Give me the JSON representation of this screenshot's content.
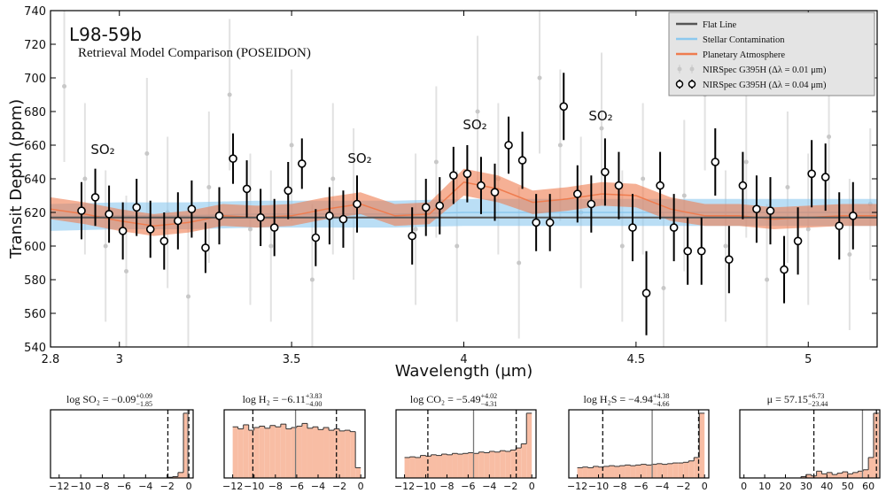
{
  "chart_data": [
    {
      "type": "line",
      "title": "L98-59b",
      "subtitle": "Retrieval Model Comparison (POSEIDON)",
      "x_label": "Wavelength (μm)",
      "y_label": "Transit Depth (ppm)",
      "xlim": [
        2.8,
        5.2
      ],
      "ylim": [
        540,
        740
      ],
      "xticks": [
        2.8,
        3,
        3.5,
        4,
        4.5,
        5
      ],
      "yticks": [
        540,
        560,
        580,
        600,
        620,
        640,
        660,
        680,
        700,
        720,
        740
      ],
      "legend": "upper right",
      "annotations": [
        "SO₂",
        "SO₂",
        "SO₂",
        "SO₂"
      ],
      "series": [
        {
          "name": "Flat Line",
          "color": "#555555",
          "x": [
            2.8,
            5.2
          ],
          "values": [
            617,
            617
          ]
        },
        {
          "name": "Stellar Contamination",
          "color": "#8cc8ee",
          "x": [
            2.8,
            3.0,
            3.2,
            3.4,
            3.6,
            3.8,
            4.0,
            4.2,
            4.4,
            4.6,
            4.8,
            5.0,
            5.2
          ],
          "values": [
            617,
            618,
            618,
            619,
            619,
            619,
            620,
            620,
            620,
            620,
            620,
            620,
            620
          ],
          "lower": [
            609,
            610,
            610,
            611,
            611,
            611,
            612,
            612,
            612,
            612,
            612,
            612,
            612
          ],
          "upper": [
            625,
            626,
            626,
            627,
            627,
            627,
            628,
            628,
            628,
            628,
            628,
            628,
            628
          ]
        },
        {
          "name": "Planetary Atmosphere",
          "color": "#ef7c4f",
          "x": [
            2.8,
            2.9,
            3.0,
            3.1,
            3.2,
            3.3,
            3.4,
            3.5,
            3.6,
            3.7,
            3.8,
            3.9,
            4.0,
            4.1,
            4.2,
            4.3,
            4.4,
            4.5,
            4.6,
            4.7,
            4.8,
            4.9,
            5.0,
            5.1,
            5.2
          ],
          "values": [
            622,
            619,
            615,
            612,
            614,
            618,
            617,
            618,
            622,
            625,
            618,
            619,
            638,
            634,
            626,
            628,
            631,
            630,
            622,
            618,
            618,
            616,
            617,
            618,
            618
          ],
          "lower": [
            616,
            613,
            609,
            606,
            608,
            612,
            611,
            612,
            616,
            619,
            612,
            613,
            630,
            626,
            619,
            621,
            624,
            623,
            615,
            612,
            612,
            610,
            611,
            612,
            612
          ],
          "upper": [
            629,
            626,
            622,
            619,
            621,
            625,
            624,
            625,
            629,
            632,
            625,
            626,
            646,
            642,
            633,
            635,
            638,
            637,
            629,
            625,
            625,
            623,
            624,
            625,
            625
          ]
        },
        {
          "name": "NIRSpec G395H (Δλ = 0.01 μm)",
          "color": "#c8c8c8",
          "marker": "dot",
          "x": [
            2.84,
            2.9,
            2.96,
            3.02,
            3.08,
            3.14,
            3.2,
            3.26,
            3.32,
            3.38,
            3.44,
            3.5,
            3.56,
            3.62,
            3.68,
            3.86,
            3.92,
            3.98,
            4.04,
            4.1,
            4.16,
            4.22,
            4.28,
            4.34,
            4.4,
            4.46,
            4.52,
            4.58,
            4.64,
            4.7,
            4.76,
            4.82,
            4.88,
            4.94,
            5.0,
            5.06,
            5.12,
            5.18
          ],
          "values": [
            695,
            640,
            600,
            585,
            655,
            620,
            570,
            635,
            690,
            610,
            600,
            660,
            580,
            640,
            625,
            610,
            650,
            600,
            680,
            640,
            590,
            700,
            660,
            620,
            670,
            600,
            640,
            575,
            630,
            690,
            600,
            650,
            580,
            635,
            610,
            665,
            595,
            625
          ],
          "errors": [
            45,
            45,
            45,
            45,
            45,
            45,
            45,
            45,
            45,
            45,
            45,
            45,
            45,
            45,
            45,
            45,
            45,
            45,
            45,
            45,
            45,
            45,
            45,
            45,
            45,
            45,
            45,
            45,
            45,
            45,
            45,
            45,
            45,
            45,
            45,
            45,
            45,
            45
          ]
        },
        {
          "name": "NIRSpec G395H (Δλ = 0.04 μm)",
          "color": "#000000",
          "marker": "open-circle",
          "x": [
            2.89,
            2.93,
            2.97,
            3.01,
            3.05,
            3.09,
            3.13,
            3.17,
            3.21,
            3.25,
            3.29,
            3.33,
            3.37,
            3.41,
            3.45,
            3.49,
            3.53,
            3.57,
            3.61,
            3.65,
            3.69,
            3.85,
            3.89,
            3.93,
            3.97,
            4.01,
            4.05,
            4.09,
            4.13,
            4.17,
            4.21,
            4.25,
            4.29,
            4.33,
            4.37,
            4.41,
            4.45,
            4.49,
            4.53,
            4.57,
            4.61,
            4.65,
            4.69,
            4.73,
            4.77,
            4.81,
            4.85,
            4.89,
            4.93,
            4.97,
            5.01,
            5.05,
            5.09,
            5.13
          ],
          "values": [
            621,
            629,
            619,
            609,
            623,
            610,
            603,
            615,
            622,
            599,
            618,
            652,
            634,
            617,
            611,
            633,
            649,
            605,
            618,
            616,
            625,
            606,
            623,
            624,
            642,
            643,
            636,
            632,
            660,
            651,
            614,
            614,
            683,
            631,
            625,
            644,
            636,
            611,
            572,
            636,
            611,
            597,
            597,
            650,
            592,
            636,
            622,
            621,
            586,
            603,
            643,
            641,
            612,
            618
          ],
          "errors": [
            17,
            17,
            17,
            17,
            17,
            17,
            17,
            17,
            17,
            15,
            17,
            15,
            17,
            17,
            17,
            17,
            15,
            17,
            17,
            17,
            17,
            17,
            17,
            17,
            17,
            17,
            17,
            17,
            17,
            17,
            17,
            17,
            20,
            17,
            17,
            20,
            20,
            20,
            25,
            20,
            20,
            20,
            20,
            20,
            20,
            20,
            20,
            20,
            20,
            20,
            20,
            20,
            20,
            20
          ]
        }
      ]
    },
    {
      "type": "histogram",
      "title": "log SO₂ = −0.09",
      "title_sup": "+0.09",
      "title_sub": "−1.85",
      "color": "#f8bda4",
      "xlim": [
        -12.8,
        0.4
      ],
      "ylim": [
        0,
        1
      ],
      "xticks": [
        {
          "value": -12,
          "label": "−12"
        },
        {
          "value": -10,
          "label": "−10"
        },
        {
          "value": -8,
          "label": "−8"
        },
        {
          "value": -6,
          "label": "−6"
        },
        {
          "value": -4,
          "label": "−4"
        },
        {
          "value": -2,
          "label": "−2"
        },
        0
      ],
      "bins": [
        -12,
        -11.5,
        -11,
        -10.5,
        -10,
        -9.5,
        -9,
        -8.5,
        -8,
        -7.5,
        -7,
        -6.5,
        -6,
        -5.5,
        -5,
        -4.5,
        -4,
        -3.5,
        -3,
        -2.5,
        -2,
        -1.5,
        -1,
        -0.5,
        0
      ],
      "values": [
        0,
        0,
        0,
        0,
        0,
        0,
        0,
        0,
        0,
        0,
        0,
        0,
        0,
        0,
        0,
        0,
        0,
        0,
        0,
        0,
        0.01,
        0.02,
        0.08,
        0.95
      ],
      "quantiles": [
        -1.94,
        -0.09,
        0.0
      ]
    },
    {
      "type": "histogram",
      "title": "log H₂ = −6.11",
      "title_sup": "+3.83",
      "title_sub": "−4.00",
      "color": "#f8bda4",
      "xlim": [
        -12.8,
        0.4
      ],
      "ylim": [
        0,
        1
      ],
      "xticks": [
        {
          "value": -12,
          "label": "−12"
        },
        {
          "value": -10,
          "label": "−10"
        },
        {
          "value": -8,
          "label": "−8"
        },
        {
          "value": -6,
          "label": "−6"
        },
        {
          "value": -4,
          "label": "−4"
        },
        {
          "value": -2,
          "label": "−2"
        },
        0
      ],
      "bins": [
        -12,
        -11.5,
        -11,
        -10.5,
        -10,
        -9.5,
        -9,
        -8.5,
        -8,
        -7.5,
        -7,
        -6.5,
        -6,
        -5.5,
        -5,
        -4.5,
        -4,
        -3.5,
        -3,
        -2.5,
        -2,
        -1.5,
        -1,
        -0.5,
        0
      ],
      "values": [
        0.75,
        0.72,
        0.78,
        0.7,
        0.74,
        0.76,
        0.73,
        0.77,
        0.75,
        0.79,
        0.72,
        0.74,
        0.76,
        0.8,
        0.73,
        0.75,
        0.71,
        0.74,
        0.7,
        0.72,
        0.69,
        0.7,
        0.68,
        0.15
      ],
      "quantiles": [
        -10.11,
        -6.11,
        -2.28
      ]
    },
    {
      "type": "histogram",
      "title": "log CO₂ = −5.49",
      "title_sup": "+4.02",
      "title_sub": "−4.31",
      "color": "#f8bda4",
      "xlim": [
        -12.8,
        0.4
      ],
      "ylim": [
        0,
        1
      ],
      "xticks": [
        {
          "value": -12,
          "label": "−12"
        },
        {
          "value": -10,
          "label": "−10"
        },
        {
          "value": -8,
          "label": "−8"
        },
        {
          "value": -6,
          "label": "−6"
        },
        {
          "value": -4,
          "label": "−4"
        },
        {
          "value": -2,
          "label": "−2"
        },
        0
      ],
      "bins": [
        -12,
        -11.5,
        -11,
        -10.5,
        -10,
        -9.5,
        -9,
        -8.5,
        -8,
        -7.5,
        -7,
        -6.5,
        -6,
        -5.5,
        -5,
        -4.5,
        -4,
        -3.5,
        -3,
        -2.5,
        -2,
        -1.5,
        -1,
        -0.5,
        0
      ],
      "values": [
        0.3,
        0.31,
        0.3,
        0.33,
        0.32,
        0.34,
        0.33,
        0.35,
        0.34,
        0.36,
        0.35,
        0.36,
        0.37,
        0.36,
        0.38,
        0.37,
        0.39,
        0.38,
        0.4,
        0.39,
        0.41,
        0.44,
        0.5,
        0.95
      ],
      "quantiles": [
        -9.8,
        -5.49,
        -1.47
      ]
    },
    {
      "type": "histogram",
      "title": "log H₂S = −4.94",
      "title_sup": "+4.38",
      "title_sub": "−4.66",
      "color": "#f8bda4",
      "xlim": [
        -12.8,
        0.4
      ],
      "ylim": [
        0,
        1
      ],
      "xticks": [
        {
          "value": -12,
          "label": "−12"
        },
        {
          "value": -10,
          "label": "−10"
        },
        {
          "value": -8,
          "label": "−8"
        },
        {
          "value": -6,
          "label": "−6"
        },
        {
          "value": -4,
          "label": "−4"
        },
        {
          "value": -2,
          "label": "−2"
        },
        0
      ],
      "bins": [
        -12,
        -11.5,
        -11,
        -10.5,
        -10,
        -9.5,
        -9,
        -8.5,
        -8,
        -7.5,
        -7,
        -6.5,
        -6,
        -5.5,
        -5,
        -4.5,
        -4,
        -3.5,
        -3,
        -2.5,
        -2,
        -1.5,
        -1,
        -0.5,
        0
      ],
      "values": [
        0.15,
        0.16,
        0.15,
        0.17,
        0.16,
        0.17,
        0.18,
        0.17,
        0.18,
        0.19,
        0.18,
        0.19,
        0.2,
        0.19,
        0.2,
        0.21,
        0.2,
        0.21,
        0.22,
        0.22,
        0.23,
        0.25,
        0.3,
        0.95
      ],
      "quantiles": [
        -9.6,
        -4.94,
        -0.56
      ]
    },
    {
      "type": "histogram",
      "title": "μ = 57.15",
      "title_sup": "+6.73",
      "title_sub": "−23.44",
      "color": "#f8bda4",
      "xlim": [
        -2,
        65.5
      ],
      "ylim": [
        0,
        1
      ],
      "xticks": [
        0,
        10,
        20,
        30,
        40,
        50,
        60
      ],
      "bins": [
        0,
        2.5,
        5,
        7.5,
        10,
        12.5,
        15,
        17.5,
        20,
        22.5,
        25,
        27.5,
        30,
        32.5,
        35,
        37.5,
        40,
        42.5,
        45,
        47.5,
        50,
        52.5,
        55,
        57.5,
        60,
        62.5,
        65
      ],
      "values": [
        0,
        0,
        0,
        0,
        0,
        0,
        0,
        0,
        0,
        0,
        0,
        0.02,
        0.05,
        0.03,
        0.1,
        0.06,
        0.08,
        0.05,
        0.07,
        0.09,
        0.06,
        0.08,
        0.1,
        0.12,
        0.3,
        0.95
      ],
      "quantiles": [
        33.71,
        57.15,
        63.88
      ]
    }
  ]
}
